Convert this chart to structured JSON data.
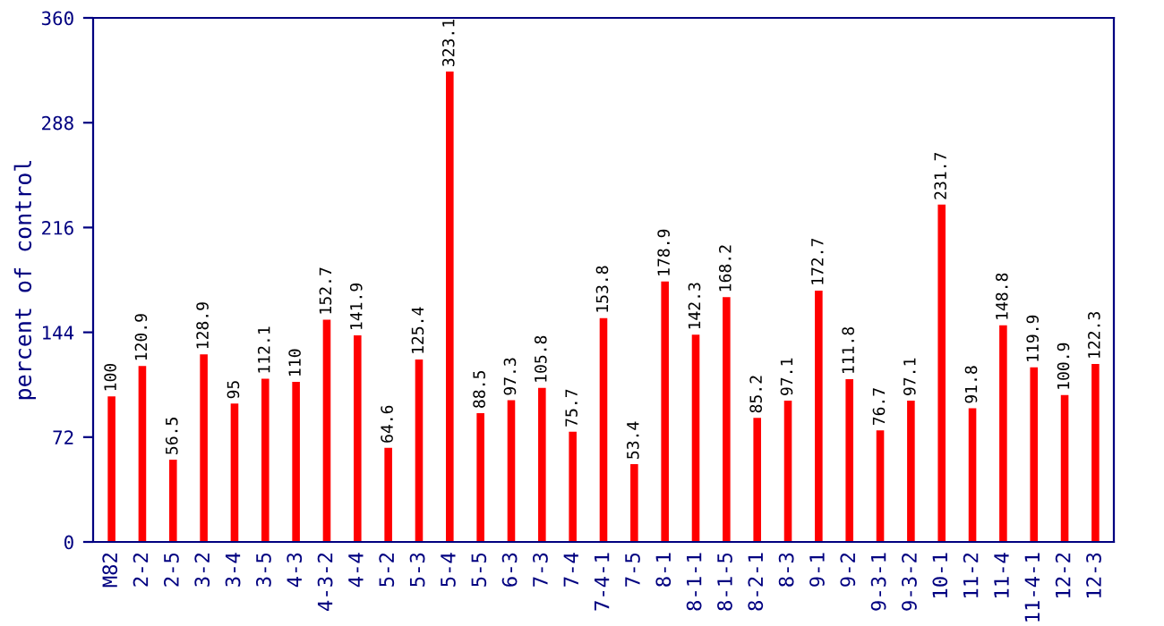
{
  "chart_data": {
    "type": "bar",
    "ylabel": "percent of control",
    "categories": [
      "M82",
      "2-2",
      "2-5",
      "3-2",
      "3-4",
      "3-5",
      "4-3",
      "4-3-2",
      "4-4",
      "5-2",
      "5-3",
      "5-4",
      "5-5",
      "6-3",
      "7-3",
      "7-4",
      "7-4-1",
      "7-5",
      "8-1",
      "8-1-1",
      "8-1-5",
      "8-2-1",
      "8-3",
      "9-1",
      "9-2",
      "9-3-1",
      "9-3-2",
      "10-1",
      "11-2",
      "11-4",
      "11-4-1",
      "12-2",
      "12-3"
    ],
    "values": [
      100,
      120.9,
      56.5,
      128.9,
      95,
      112.1,
      110,
      152.7,
      141.9,
      64.6,
      125.4,
      323.1,
      88.5,
      97.3,
      105.8,
      75.7,
      153.8,
      53.4,
      178.9,
      142.3,
      168.2,
      85.2,
      97.1,
      172.7,
      111.8,
      76.7,
      97.1,
      231.7,
      91.8,
      148.8,
      119.9,
      100.9,
      122.3
    ],
    "color": "#ff0000",
    "ylim": [
      0,
      360
    ],
    "yticks": [
      0,
      72,
      144,
      216,
      288,
      360
    ],
    "grid": false,
    "data_labels": true
  }
}
